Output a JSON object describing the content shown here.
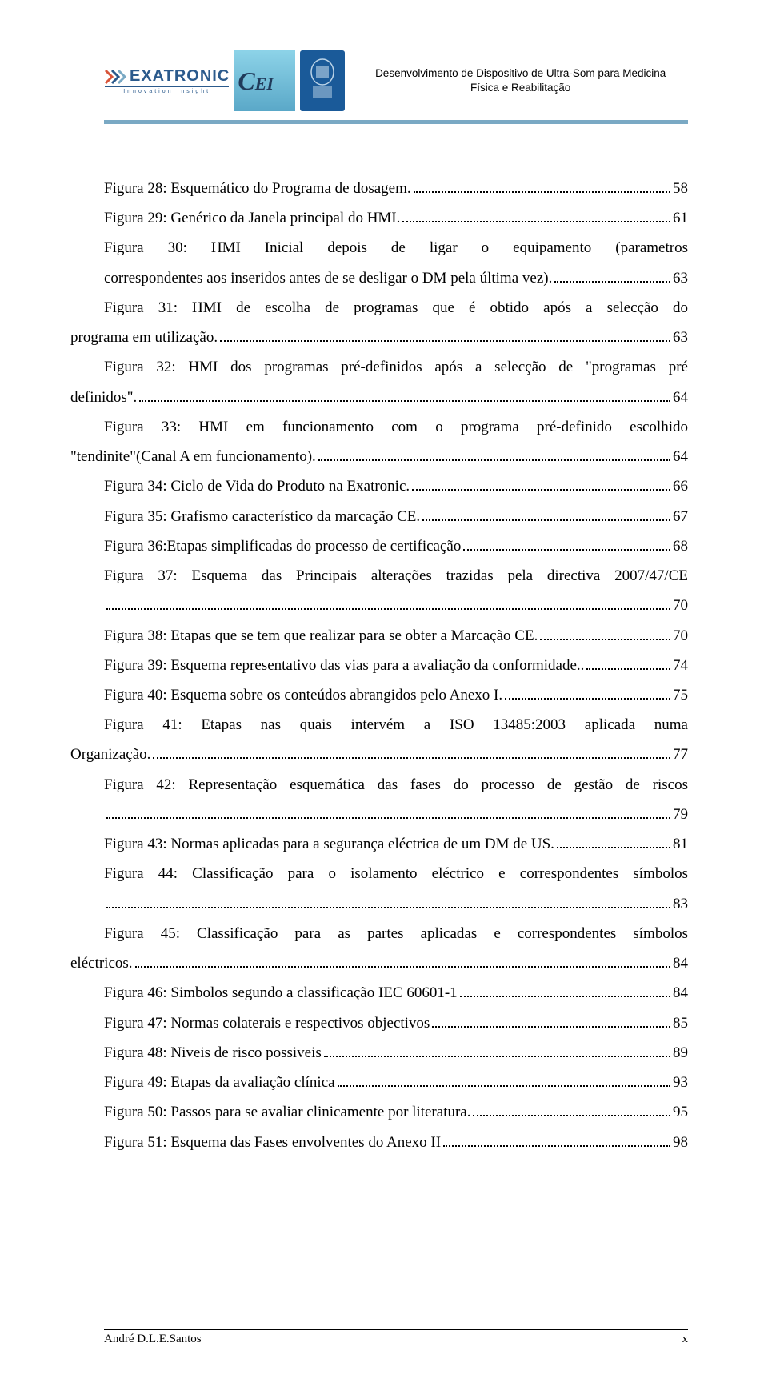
{
  "header": {
    "brand_name": "EXATRONIC",
    "brand_tag": "Innovation Insight",
    "title_line1": "Desenvolvimento de Dispositivo de Ultra-Som para Medicina",
    "title_line2": "Física e Reabilitação"
  },
  "colors": {
    "accent_bar": "#7aa9c4",
    "brand_blue": "#2b5a8c",
    "logo_cei_bg_top": "#8dd3e8",
    "logo_cei_bg_bot": "#5aa8c8",
    "logo_uni_bg": "#1a5a99",
    "text": "#000000",
    "bg": "#ffffff"
  },
  "entries": [
    {
      "lines": [
        "Figura 28: Esquemático do Programa de dosagem."
      ],
      "page": "58"
    },
    {
      "lines": [
        "Figura 29: Genérico da Janela principal do HMI."
      ],
      "page": "61"
    },
    {
      "lines": [
        "Figura 30: HMI Inicial depois de ligar o equipamento (parametros",
        "correspondentes aos inseridos antes de se desligar o DM pela última vez)."
      ],
      "page": "63"
    },
    {
      "lines": [
        "Figura 31: HMI de escolha de programas que é obtido após a selecção do",
        "programa em utilização."
      ],
      "page": "63",
      "hang": true
    },
    {
      "lines": [
        "Figura 32: HMI dos programas pré-definidos após a selecção de \"programas pré",
        "definidos\"."
      ],
      "page": "64",
      "hang": true
    },
    {
      "lines": [
        "Figura 33: HMI em funcionamento com o programa pré-definido escolhido",
        "\"tendinite\"(Canal A em funcionamento)."
      ],
      "page": "64",
      "hang": true
    },
    {
      "lines": [
        "Figura 34: Ciclo de Vida do Produto na Exatronic."
      ],
      "page": "66"
    },
    {
      "lines": [
        "Figura 35: Grafismo característico da marcação CE."
      ],
      "page": "67"
    },
    {
      "lines": [
        "Figura 36:Etapas simplificadas do processo de certificação"
      ],
      "page": "68"
    },
    {
      "lines": [
        "Figura 37: Esquema das Principais alterações trazidas pela directiva 2007/47/CE",
        ""
      ],
      "page": "70"
    },
    {
      "lines": [
        "Figura 38: Etapas que se tem que realizar para se obter a Marcação CE."
      ],
      "page": "70"
    },
    {
      "lines": [
        "Figura 39: Esquema representativo das vias para a avaliação da conformidade"
      ],
      "page": "74",
      "leader_prefix": ".. "
    },
    {
      "lines": [
        "Figura 40: Esquema sobre os conteúdos abrangidos pelo Anexo I."
      ],
      "page": "75"
    },
    {
      "lines": [
        "Figura 41: Etapas nas quais intervém a ISO 13485:2003 aplicada numa",
        "Organização."
      ],
      "page": "77",
      "hang": true
    },
    {
      "lines": [
        "Figura 42: Representação esquemática das fases do processo de gestão de riscos",
        ""
      ],
      "page": "79"
    },
    {
      "lines": [
        "Figura 43: Normas aplicadas para a segurança eléctrica de um DM de US."
      ],
      "page": "81"
    },
    {
      "lines": [
        "Figura 44: Classificação para o isolamento eléctrico e correspondentes símbolos",
        ""
      ],
      "page": "83"
    },
    {
      "lines": [
        "Figura 45: Classificação para as partes aplicadas e correspondentes símbolos",
        "eléctricos."
      ],
      "page": "84",
      "hang": true
    },
    {
      "lines": [
        "Figura 46: Simbolos segundo a classificação IEC 60601-1"
      ],
      "page": "84"
    },
    {
      "lines": [
        "Figura 47: Normas colaterais e respectivos objectivos"
      ],
      "page": "85"
    },
    {
      "lines": [
        "Figura 48: Niveis de risco possiveis"
      ],
      "page": "89"
    },
    {
      "lines": [
        "Figura 49: Etapas da avaliação clínica"
      ],
      "page": "93"
    },
    {
      "lines": [
        "Figura 50: Passos para se avaliar clinicamente por literatura."
      ],
      "page": "95"
    },
    {
      "lines": [
        "Figura 51: Esquema das Fases envolventes do Anexo II"
      ],
      "page": "98"
    }
  ],
  "footer": {
    "left": "André D.L.E.Santos",
    "right": "x"
  }
}
